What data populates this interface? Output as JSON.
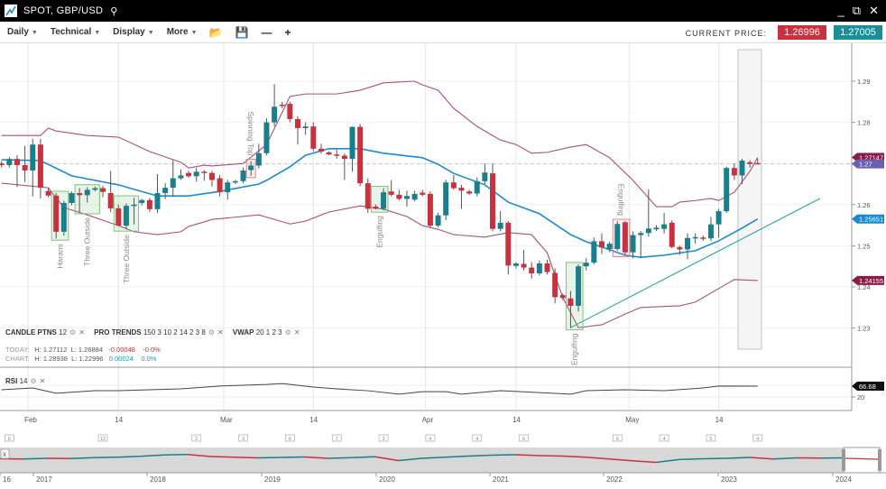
{
  "window": {
    "title": "SPOT, GBP/USD",
    "icons": [
      "chart-logo-icon",
      "search-icon",
      "minimize-icon",
      "popout-icon",
      "close-icon"
    ]
  },
  "toolbar": {
    "menus": [
      "Daily",
      "Technical",
      "Display",
      "More"
    ],
    "icons": [
      "folder-open-icon",
      "save-icon",
      "zoom-out-icon",
      "zoom-in-icon"
    ],
    "current_price_label": "CURRENT PRICE:",
    "bid": "1.26996",
    "ask": "1.27005"
  },
  "colors": {
    "up": "#1a7f8c",
    "down": "#c8313d",
    "bollinger": "#a8507a",
    "moving_average": "#1a8ad0",
    "trendline": "#2aa3a3",
    "pattern_bull": "#7cc47c",
    "pattern_bear": "#f08080"
  },
  "indicators": {
    "candle_ptns": {
      "name": "CANDLE PTNS",
      "params": "12"
    },
    "pro_trends": {
      "name": "PRO TRENDS",
      "params": "150 3 10 2 14 2 3 8"
    },
    "vwap": {
      "name": "VWAP",
      "params": "20 1 2 3"
    },
    "rsi": {
      "name": "RSI",
      "params": "14"
    }
  },
  "stats": {
    "today": {
      "label": "TODAY:",
      "high": "H: 1.27112",
      "low": "L: 1.26884",
      "change": "-0.00048",
      "pct": "-0.0%"
    },
    "chart": {
      "label": "CHART:",
      "high": "H: 1.28938",
      "low": "L: 1.22996",
      "change": "0.00024",
      "pct": "0.0%"
    }
  },
  "chart_data": {
    "type": "candlestick",
    "price_ticks": [
      "1.29",
      "1.28",
      "1.27",
      "1.26",
      "1.25",
      "1.24",
      "1.23"
    ],
    "price_tick_values": [
      1.29,
      1.28,
      1.27,
      1.26,
      1.25,
      1.24,
      1.23
    ],
    "ylim": [
      1.2215,
      1.2985
    ],
    "date_ticks": [
      {
        "label": "Feb",
        "bar": 3.4
      },
      {
        "label": "14",
        "bar": 15
      },
      {
        "label": "Mar",
        "bar": 28.5
      },
      {
        "label": "14",
        "bar": 40
      },
      {
        "label": "Apr",
        "bar": 54.4
      },
      {
        "label": "14",
        "bar": 66
      },
      {
        "label": "May",
        "bar": 80.5
      },
      {
        "label": "14",
        "bar": 92
      }
    ],
    "candles": [
      [
        1.27,
        1.2706,
        1.269,
        1.2696
      ],
      [
        1.2696,
        1.2716,
        1.269,
        1.2711
      ],
      [
        1.2711,
        1.272,
        1.2643,
        1.2696
      ],
      [
        1.2696,
        1.2743,
        1.2655,
        1.2683
      ],
      [
        1.2683,
        1.276,
        1.262,
        1.2746
      ],
      [
        1.2746,
        1.276,
        1.2615,
        1.2641
      ],
      [
        1.2633,
        1.264,
        1.2618,
        1.2622
      ],
      [
        1.2622,
        1.2628,
        1.2518,
        1.2534
      ],
      [
        1.2534,
        1.2609,
        1.2525,
        1.2604
      ],
      [
        1.2604,
        1.2632,
        1.2598,
        1.2628
      ],
      [
        1.2628,
        1.264,
        1.2582,
        1.2623
      ],
      [
        1.2623,
        1.2642,
        1.2605,
        1.2636
      ],
      [
        1.2636,
        1.2644,
        1.2632,
        1.264
      ],
      [
        1.264,
        1.2646,
        1.2618,
        1.2631
      ],
      [
        1.2628,
        1.2682,
        1.2582,
        1.2591
      ],
      [
        1.2591,
        1.26,
        1.2548,
        1.2549
      ],
      [
        1.2549,
        1.2603,
        1.254,
        1.2597
      ],
      [
        1.2597,
        1.2617,
        1.2552,
        1.26
      ],
      [
        1.2604,
        1.2614,
        1.2598,
        1.2611
      ],
      [
        1.2611,
        1.2616,
        1.2582,
        1.2589
      ],
      [
        1.2589,
        1.2674,
        1.258,
        1.2628
      ],
      [
        1.2628,
        1.2652,
        1.2613,
        1.2641
      ],
      [
        1.2641,
        1.2708,
        1.262,
        1.2664
      ],
      [
        1.2664,
        1.2686,
        1.266,
        1.2671
      ],
      [
        1.2677,
        1.2682,
        1.2665,
        1.2669
      ],
      [
        1.2669,
        1.269,
        1.2656,
        1.268
      ],
      [
        1.268,
        1.2684,
        1.2658,
        1.2677
      ],
      [
        1.2677,
        1.2682,
        1.2644,
        1.266
      ],
      [
        1.2664,
        1.2672,
        1.262,
        1.263
      ],
      [
        1.263,
        1.266,
        1.2612,
        1.2654
      ],
      [
        1.2654,
        1.266,
        1.265,
        1.2657
      ],
      [
        1.2657,
        1.269,
        1.2652,
        1.2683
      ],
      [
        1.2684,
        1.2706,
        1.267,
        1.2695
      ],
      [
        1.2695,
        1.2748,
        1.2688,
        1.2725
      ],
      [
        1.2725,
        1.281,
        1.272,
        1.28
      ],
      [
        1.28,
        1.2893,
        1.279,
        1.2838
      ],
      [
        1.2843,
        1.285,
        1.2834,
        1.284
      ],
      [
        1.2845,
        1.285,
        1.28,
        1.2808
      ],
      [
        1.2808,
        1.2815,
        1.2746,
        1.2786
      ],
      [
        1.2786,
        1.28,
        1.277,
        1.279
      ],
      [
        1.279,
        1.28,
        1.273,
        1.2736
      ],
      [
        1.2736,
        1.2748,
        1.2724,
        1.2729
      ],
      [
        1.2727,
        1.273,
        1.272,
        1.2722
      ],
      [
        1.2722,
        1.2734,
        1.2712,
        1.2719
      ],
      [
        1.2719,
        1.2724,
        1.266,
        1.2711
      ],
      [
        1.2711,
        1.279,
        1.268,
        1.2789
      ],
      [
        1.2789,
        1.2796,
        1.2645,
        1.2652
      ],
      [
        1.2652,
        1.2664,
        1.258,
        1.259
      ],
      [
        1.2595,
        1.26,
        1.2588,
        1.259
      ],
      [
        1.259,
        1.264,
        1.2586,
        1.263
      ],
      [
        1.2632,
        1.266,
        1.262,
        1.2624
      ],
      [
        1.2624,
        1.2636,
        1.261,
        1.2614
      ],
      [
        1.2614,
        1.2634,
        1.2595,
        1.2621
      ],
      [
        1.2612,
        1.2634,
        1.2608,
        1.2626
      ],
      [
        1.2629,
        1.2636,
        1.262,
        1.2624
      ],
      [
        1.2626,
        1.2632,
        1.2545,
        1.2549
      ],
      [
        1.2549,
        1.258,
        1.2545,
        1.2574
      ],
      [
        1.2574,
        1.266,
        1.2562,
        1.2654
      ],
      [
        1.2654,
        1.2672,
        1.2636,
        1.264
      ],
      [
        1.2641,
        1.2648,
        1.259,
        1.2634
      ],
      [
        1.2632,
        1.2636,
        1.2624,
        1.2627
      ],
      [
        1.2627,
        1.2666,
        1.262,
        1.2657
      ],
      [
        1.2657,
        1.27,
        1.265,
        1.2678
      ],
      [
        1.2676,
        1.27,
        1.2535,
        1.2541
      ],
      [
        1.2541,
        1.2584,
        1.2535,
        1.2556
      ],
      [
        1.2556,
        1.256,
        1.243,
        1.2452
      ],
      [
        1.2451,
        1.246,
        1.2445,
        1.2457
      ],
      [
        1.2456,
        1.249,
        1.244,
        1.2447
      ],
      [
        1.2447,
        1.246,
        1.242,
        1.2433
      ],
      [
        1.2433,
        1.2464,
        1.2428,
        1.2457
      ],
      [
        1.2457,
        1.2466,
        1.243,
        1.2436
      ],
      [
        1.2434,
        1.2445,
        1.236,
        1.2375
      ],
      [
        1.238,
        1.2384,
        1.2368,
        1.2373
      ],
      [
        1.2372,
        1.239,
        1.23,
        1.2354
      ],
      [
        1.2354,
        1.2455,
        1.234,
        1.245
      ],
      [
        1.245,
        1.247,
        1.244,
        1.2459
      ],
      [
        1.2459,
        1.252,
        1.2455,
        1.2511
      ],
      [
        1.2511,
        1.253,
        1.248,
        1.2496
      ],
      [
        1.2492,
        1.251,
        1.2485,
        1.2505
      ],
      [
        1.2492,
        1.256,
        1.2488,
        1.2553
      ],
      [
        1.2557,
        1.256,
        1.2478,
        1.2484
      ],
      [
        1.2484,
        1.2535,
        1.247,
        1.2526
      ],
      [
        1.2526,
        1.2536,
        1.247,
        1.2531
      ],
      [
        1.2531,
        1.2637,
        1.2522,
        1.2542
      ],
      [
        1.254,
        1.255,
        1.2536,
        1.2544
      ],
      [
        1.2541,
        1.258,
        1.253,
        1.2552
      ],
      [
        1.2556,
        1.2562,
        1.2494,
        1.2497
      ],
      [
        1.2497,
        1.25,
        1.2478,
        1.2491
      ],
      [
        1.2491,
        1.253,
        1.2468,
        1.2519
      ],
      [
        1.2519,
        1.253,
        1.2505,
        1.2521
      ],
      [
        1.252,
        1.2525,
        1.2512,
        1.2517
      ],
      [
        1.2518,
        1.257,
        1.2512,
        1.2552
      ],
      [
        1.2552,
        1.259,
        1.252,
        1.2584
      ],
      [
        1.2584,
        1.2692,
        1.258,
        1.2689
      ],
      [
        1.2689,
        1.27,
        1.266,
        1.2671
      ],
      [
        1.2671,
        1.2711,
        1.265,
        1.2707
      ],
      [
        1.2703,
        1.2708,
        1.269,
        1.2699
      ],
      [
        1.2701,
        1.2712,
        1.2698,
        1.2699
      ]
    ],
    "moving_average": [
      [
        0,
        1.2709
      ],
      [
        5,
        1.2707
      ],
      [
        9,
        1.267
      ],
      [
        15,
        1.2648
      ],
      [
        20,
        1.2621
      ],
      [
        24,
        1.2621
      ],
      [
        28,
        1.2632
      ],
      [
        33,
        1.265
      ],
      [
        34,
        1.2659
      ],
      [
        37,
        1.2692
      ],
      [
        39,
        1.272
      ],
      [
        42,
        1.2736
      ],
      [
        46,
        1.2736
      ],
      [
        49,
        1.2725
      ],
      [
        54,
        1.2714
      ],
      [
        56,
        1.2698
      ],
      [
        58,
        1.2676
      ],
      [
        62,
        1.2648
      ],
      [
        65,
        1.2606
      ],
      [
        69,
        1.2578
      ],
      [
        73,
        1.2527
      ],
      [
        75,
        1.251
      ],
      [
        80,
        1.2477
      ],
      [
        82,
        1.2472
      ],
      [
        85,
        1.2477
      ],
      [
        89,
        1.2488
      ],
      [
        92,
        1.2512
      ],
      [
        95,
        1.2543
      ],
      [
        97,
        1.25651
      ]
    ],
    "upper_band": [
      [
        0,
        1.2768
      ],
      [
        5,
        1.2768
      ],
      [
        6,
        1.2786
      ],
      [
        7,
        1.2779
      ],
      [
        11,
        1.2768
      ],
      [
        15,
        1.2764
      ],
      [
        19,
        1.2729
      ],
      [
        23,
        1.2703
      ],
      [
        24,
        1.2689
      ],
      [
        26,
        1.2696
      ],
      [
        27,
        1.2694
      ],
      [
        31,
        1.27
      ],
      [
        34,
        1.2746
      ],
      [
        37,
        1.2863
      ],
      [
        39,
        1.2869
      ],
      [
        43,
        1.2869
      ],
      [
        46,
        1.2878
      ],
      [
        49,
        1.2896
      ],
      [
        53,
        1.29
      ],
      [
        54,
        1.2891
      ],
      [
        56,
        1.2878
      ],
      [
        58,
        1.2834
      ],
      [
        61,
        1.279
      ],
      [
        64,
        1.2757
      ],
      [
        66,
        1.2746
      ],
      [
        68,
        1.2725
      ],
      [
        70,
        1.2727
      ],
      [
        73,
        1.274
      ],
      [
        75,
        1.2746
      ],
      [
        78,
        1.2714
      ],
      [
        81,
        1.2659
      ],
      [
        84,
        1.2595
      ],
      [
        86,
        1.2595
      ],
      [
        87,
        1.2606
      ],
      [
        89,
        1.261
      ],
      [
        91,
        1.2615
      ],
      [
        92,
        1.261
      ],
      [
        94,
        1.263
      ],
      [
        96,
        1.2681
      ],
      [
        97,
        1.27147
      ]
    ],
    "lower_band": [
      [
        0,
        1.2652
      ],
      [
        6,
        1.2641
      ],
      [
        8,
        1.2593
      ],
      [
        11,
        1.2575
      ],
      [
        15,
        1.2549
      ],
      [
        17,
        1.2534
      ],
      [
        20,
        1.2527
      ],
      [
        23,
        1.2534
      ],
      [
        24,
        1.2547
      ],
      [
        26,
        1.2558
      ],
      [
        27,
        1.2564
      ],
      [
        33,
        1.2575
      ],
      [
        37,
        1.2553
      ],
      [
        39,
        1.256
      ],
      [
        42,
        1.2582
      ],
      [
        46,
        1.2597
      ],
      [
        49,
        1.2589
      ],
      [
        52,
        1.2571
      ],
      [
        54,
        1.2549
      ],
      [
        56,
        1.254
      ],
      [
        58,
        1.2527
      ],
      [
        62,
        1.2521
      ],
      [
        65,
        1.2532
      ],
      [
        68,
        1.2527
      ],
      [
        70,
        1.2483
      ],
      [
        72,
        1.2374
      ],
      [
        74,
        1.2301
      ],
      [
        77,
        1.2308
      ],
      [
        80,
        1.2334
      ],
      [
        82,
        1.235
      ],
      [
        87,
        1.2354
      ],
      [
        89,
        1.2363
      ],
      [
        92,
        1.2396
      ],
      [
        94,
        1.2418
      ],
      [
        97,
        1.24155
      ]
    ],
    "trendline": [
      [
        73,
        1.2301
      ],
      [
        105,
        1.2615
      ]
    ],
    "current_price": 1.2699,
    "axis_labels": [
      {
        "text": "1.27147",
        "value": 1.27147,
        "color": "#8a1c4a"
      },
      {
        "text": "1.27",
        "value": 1.2699,
        "color": "#6a5fb0"
      },
      {
        "text": "1.25651",
        "value": 1.25651,
        "color": "#1a8ad0"
      },
      {
        "text": "1.24155",
        "value": 1.24155,
        "color": "#8a1c4a"
      }
    ],
    "patterns": [
      {
        "label": "Harami",
        "from": 7,
        "to": 8,
        "kind": "bull",
        "pos": "below"
      },
      {
        "label": "Three Outside",
        "from": 10,
        "to": 12,
        "kind": "bull",
        "pos": "below"
      },
      {
        "label": "Three Outside",
        "from": 15,
        "to": 17,
        "kind": "bull",
        "pos": "below"
      },
      {
        "label": "Spinning Top",
        "from": 32,
        "to": 32,
        "kind": "bear",
        "pos": "above"
      },
      {
        "label": "Engulfing",
        "from": 48,
        "to": 49,
        "kind": "bull",
        "pos": "below"
      },
      {
        "label": "Engulfing",
        "from": 73,
        "to": 74,
        "kind": "bull",
        "pos": "below"
      },
      {
        "label": "Engulfing",
        "from": 79,
        "to": 80,
        "kind": "bear",
        "pos": "above"
      }
    ],
    "rsi": {
      "values": [
        [
          0,
          51
        ],
        [
          4,
          59
        ],
        [
          7,
          36
        ],
        [
          12,
          47
        ],
        [
          15,
          47
        ],
        [
          23,
          55
        ],
        [
          28,
          67
        ],
        [
          34,
          74
        ],
        [
          36,
          78
        ],
        [
          40,
          63
        ],
        [
          43,
          55
        ],
        [
          47,
          47
        ],
        [
          51,
          32
        ],
        [
          54,
          43
        ],
        [
          57,
          43
        ],
        [
          59,
          32
        ],
        [
          64,
          47
        ],
        [
          73,
          32
        ],
        [
          75,
          47
        ],
        [
          80,
          51
        ],
        [
          85,
          47
        ],
        [
          90,
          59
        ],
        [
          92,
          67
        ],
        [
          97,
          66.68
        ]
      ],
      "last_label": "66.68",
      "level_label": "20",
      "level": 20
    },
    "events": [
      {
        "bar": 1,
        "count": "6"
      },
      {
        "bar": 13,
        "count": "12"
      },
      {
        "bar": 25,
        "count": "2"
      },
      {
        "bar": 31,
        "count": "3"
      },
      {
        "bar": 37,
        "count": "6"
      },
      {
        "bar": 43,
        "count": "7"
      },
      {
        "bar": 49,
        "count": "3"
      },
      {
        "bar": 55,
        "count": "4"
      },
      {
        "bar": 61,
        "count": "4"
      },
      {
        "bar": 67,
        "count": "6"
      },
      {
        "bar": 79,
        "count": "6"
      },
      {
        "bar": 85,
        "count": "4"
      },
      {
        "bar": 91,
        "count": "5"
      },
      {
        "bar": 97,
        "count": "4"
      }
    ],
    "navigator": {
      "years": [
        "16",
        "2017",
        "2018",
        "2019",
        "2020",
        "2021",
        "2022",
        "2023",
        "2024"
      ],
      "close_label": "x",
      "history": [
        1.23,
        1.22,
        1.25,
        1.24,
        1.28,
        1.3,
        1.34,
        1.4,
        1.42,
        1.33,
        1.3,
        1.27,
        1.29,
        1.31,
        1.25,
        1.28,
        1.32,
        1.15,
        1.25,
        1.3,
        1.35,
        1.39,
        1.41,
        1.37,
        1.35,
        1.3,
        1.22,
        1.14,
        1.07,
        1.2,
        1.23,
        1.25,
        1.29,
        1.22,
        1.27,
        1.26,
        1.27
      ]
    }
  }
}
